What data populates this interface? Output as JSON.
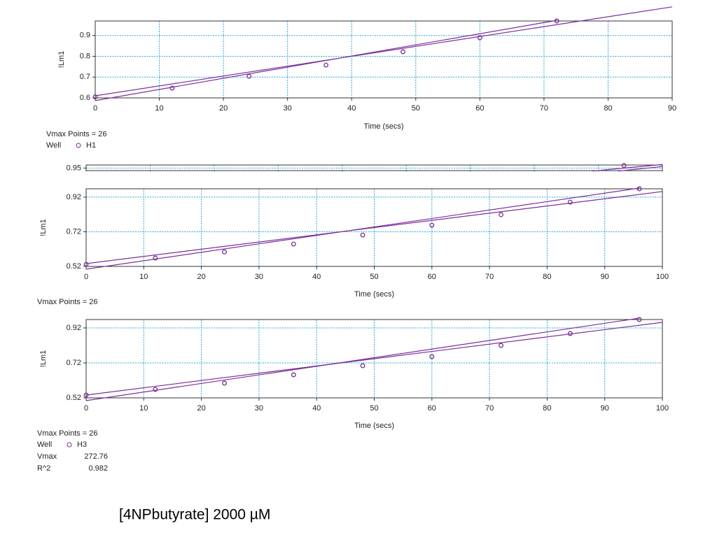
{
  "chart_data": [
    {
      "type": "line",
      "xlabel": "Time (secs)",
      "ylabel": "!Lm1",
      "xlim": [
        0,
        90
      ],
      "xticks": [
        0,
        10,
        20,
        30,
        40,
        50,
        60,
        70,
        80,
        90
      ],
      "ylim": [
        0.6,
        0.97
      ],
      "yticks": [
        0.6,
        0.7,
        0.8,
        0.9
      ],
      "grid": true,
      "series": [
        {
          "name": "H1",
          "color": "#7b2d9b",
          "markers": true,
          "x": [
            0,
            12,
            24,
            36,
            48,
            60,
            72
          ],
          "values": [
            0.605,
            0.647,
            0.704,
            0.758,
            0.822,
            0.889,
            0.97
          ]
        },
        {
          "color": "#7b2d9b",
          "markers": false,
          "x": [
            0,
            90
          ],
          "values": [
            0.61,
            1.038
          ]
        },
        {
          "color": "#7b2d9b",
          "markers": false,
          "x": [
            0,
            72
          ],
          "values": [
            0.587,
            0.973
          ]
        }
      ]
    },
    {
      "type": "line",
      "xlim": [
        0,
        90
      ],
      "xticks": [
        0,
        10,
        20,
        30,
        40,
        50,
        60,
        70,
        80,
        90
      ],
      "ylim": [
        0.945,
        0.956
      ],
      "yticks": [
        0.95
      ],
      "grid": true,
      "series": [
        {
          "color": "#7b2d9b",
          "markers": true,
          "x": [
            84
          ],
          "values": [
            0.955
          ]
        },
        {
          "color": "#7b2d9b",
          "markers": false,
          "x": [
            79,
            90
          ],
          "values": [
            0.944,
            0.957
          ]
        },
        {
          "color": "#7b2d9b",
          "markers": false,
          "x": [
            83,
            90
          ],
          "values": [
            0.944,
            0.953
          ]
        }
      ]
    },
    {
      "type": "line",
      "xlabel": "Time (secs)",
      "ylabel": "!Lm1",
      "xlim": [
        0,
        100
      ],
      "xticks": [
        0,
        10,
        20,
        30,
        40,
        50,
        60,
        70,
        80,
        90,
        100
      ],
      "ylim": [
        0.52,
        0.968
      ],
      "yticks": [
        0.52,
        0.72,
        0.92
      ],
      "grid": true,
      "series": [
        {
          "color": "#7b2d9b",
          "markers": true,
          "x": [
            0,
            12,
            24,
            36,
            48,
            60,
            72,
            84,
            96
          ],
          "values": [
            0.532,
            0.568,
            0.604,
            0.649,
            0.701,
            0.758,
            0.819,
            0.891,
            0.968
          ]
        },
        {
          "color": "#7b2d9b",
          "markers": false,
          "x": [
            0,
            100
          ],
          "values": [
            0.536,
            0.952
          ]
        },
        {
          "color": "#7b2d9b",
          "markers": false,
          "x": [
            0,
            96
          ],
          "values": [
            0.504,
            0.972
          ]
        }
      ]
    },
    {
      "type": "line",
      "xlabel": "Time (secs)",
      "ylabel": "!Lm1",
      "xlim": [
        0,
        100
      ],
      "xticks": [
        0,
        10,
        20,
        30,
        40,
        50,
        60,
        70,
        80,
        90,
        100
      ],
      "ylim": [
        0.52,
        0.968
      ],
      "yticks": [
        0.52,
        0.72,
        0.92
      ],
      "grid": true,
      "series": [
        {
          "name": "H3",
          "color": "#7b2d9b",
          "markers": true,
          "x": [
            0,
            12,
            24,
            36,
            48,
            60,
            72,
            84,
            96
          ],
          "values": [
            0.536,
            0.568,
            0.604,
            0.652,
            0.704,
            0.756,
            0.82,
            0.888,
            0.968
          ]
        },
        {
          "color": "#7b2d9b",
          "markers": false,
          "x": [
            0,
            100
          ],
          "values": [
            0.536,
            0.952
          ]
        },
        {
          "color": "#7b2d9b",
          "markers": false,
          "x": [
            0,
            96
          ],
          "values": [
            0.504,
            0.976
          ]
        }
      ]
    }
  ],
  "annotations": [
    {
      "vmax_points": "Vmax Points = 26",
      "well": "Well"
    },
    {
      "vmax_points": "Vmax Points = 26"
    },
    {
      "vmax_points": "Vmax Points = 26",
      "well": "Well",
      "vmax_label": "Vmax",
      "vmax_value": "272.76",
      "r2_label": "R^2",
      "r2_value": "0.982"
    }
  ],
  "caption": "[4NPbutyrate] 2000 µM"
}
